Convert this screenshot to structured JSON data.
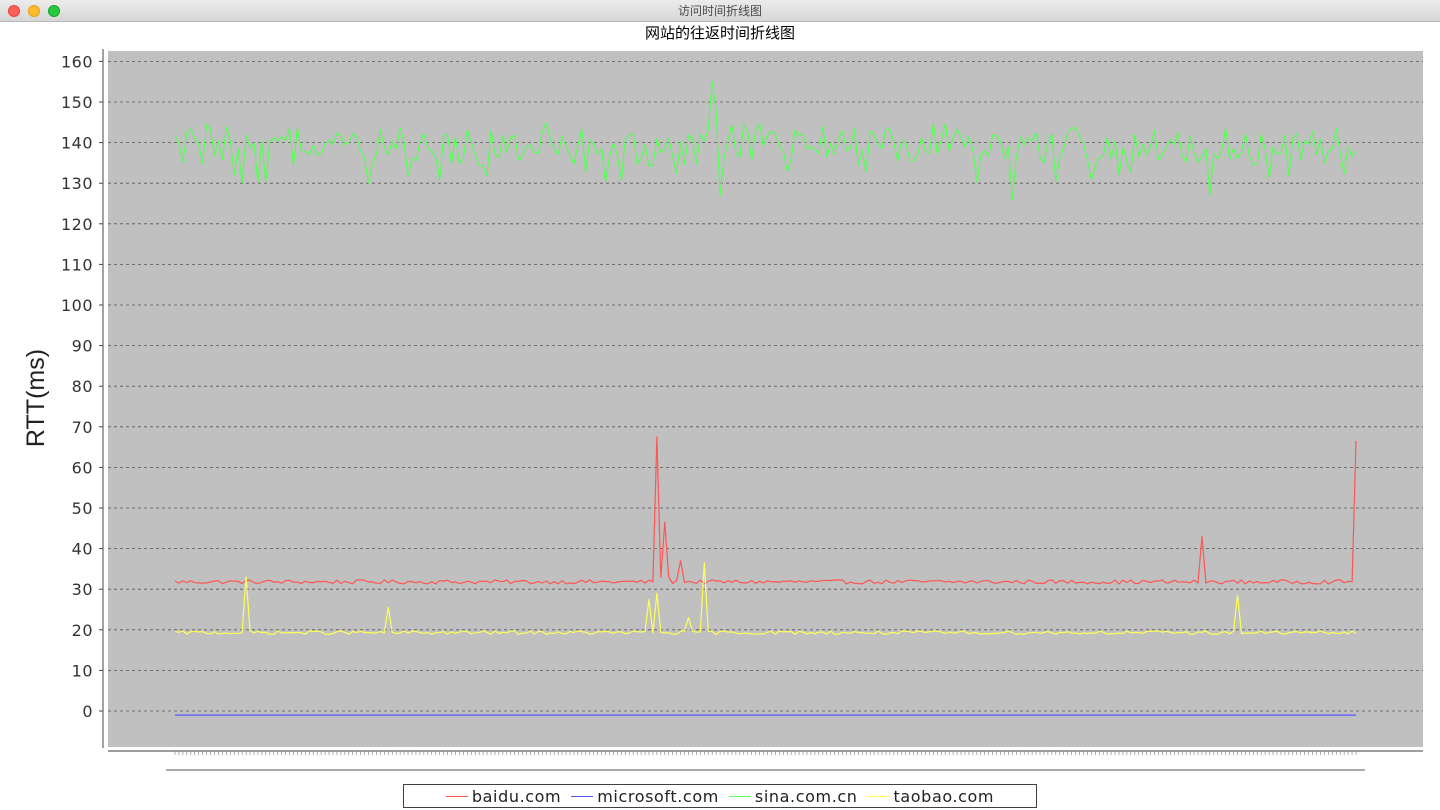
{
  "window": {
    "title": "访问时间折线图"
  },
  "chart_data": {
    "type": "line",
    "title": "网站的往返时间折线图",
    "xlabel": "",
    "ylabel": "RTT(ms)",
    "ylim": [
      -9,
      162
    ],
    "yticks": [
      0,
      10,
      20,
      30,
      40,
      50,
      60,
      70,
      80,
      90,
      100,
      110,
      120,
      130,
      140,
      150,
      160
    ],
    "grid": true,
    "legend_position": "bottom",
    "background": "#c0c0c0",
    "n_points": 300,
    "series": [
      {
        "name": "baidu.com",
        "color": "#ff5555",
        "typical": 31.8,
        "spikes": [
          [
            122,
            67.5
          ],
          [
            123,
            33
          ],
          [
            124,
            46.5
          ],
          [
            125,
            33
          ],
          [
            128,
            37
          ],
          [
            260,
            43
          ],
          [
            299,
            66.5
          ]
        ]
      },
      {
        "name": "microsoft.com",
        "color": "#5555ff",
        "typical": -1,
        "spikes": []
      },
      {
        "name": "sina.com.cn",
        "color": "#55ff55",
        "typical": 139,
        "spikes": [
          [
            136,
            155
          ],
          [
            137,
            148
          ],
          [
            138,
            127
          ],
          [
            212,
            126
          ],
          [
            262,
            127
          ]
        ]
      },
      {
        "name": "taobao.com",
        "color": "#ffff55",
        "typical": 19.3,
        "spikes": [
          [
            18,
            33
          ],
          [
            54,
            25.5
          ],
          [
            120,
            27.5
          ],
          [
            122,
            29
          ],
          [
            130,
            23
          ],
          [
            134,
            36.5
          ],
          [
            269,
            28.5
          ]
        ]
      }
    ]
  }
}
